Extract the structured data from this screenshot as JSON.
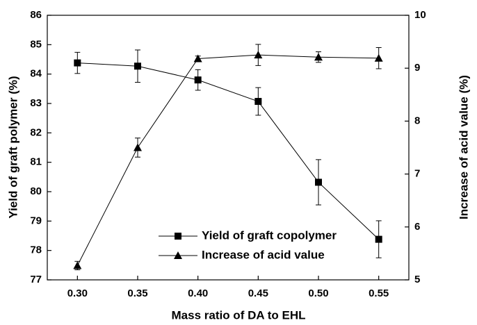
{
  "chart_data": {
    "type": "line",
    "xlabel": "Mass ratio of DA to EHL",
    "ylabel": "Yield of graft polymer (%)",
    "y2label": "Increase of acid value (%)",
    "x": [
      0.3,
      0.35,
      0.4,
      0.45,
      0.5,
      0.55
    ],
    "xlim": [
      0.275,
      0.575
    ],
    "xticks": [
      {
        "value": 0.3,
        "label": "0.30"
      },
      {
        "value": 0.35,
        "label": "0.35"
      },
      {
        "value": 0.4,
        "label": "0.40"
      },
      {
        "value": 0.45,
        "label": "0.45"
      },
      {
        "value": 0.5,
        "label": "0.50"
      },
      {
        "value": 0.55,
        "label": "0.55"
      }
    ],
    "ylim": [
      77,
      86
    ],
    "yticks": [
      77,
      78,
      79,
      80,
      81,
      82,
      83,
      84,
      85,
      86
    ],
    "y2lim": [
      5,
      10
    ],
    "y2ticks": [
      5,
      6,
      7,
      8,
      9,
      10
    ],
    "legend": "lower center",
    "series": [
      {
        "name": "Yield of graft copolymer",
        "color": "#000000",
        "marker": "square",
        "axis": "y",
        "values": [
          84.38,
          84.27,
          83.8,
          83.07,
          80.32,
          78.38
        ],
        "errors": [
          0.36,
          0.55,
          0.35,
          0.47,
          0.77,
          0.63
        ]
      },
      {
        "name": "Increase of acid value",
        "color": "#000000",
        "marker": "triangle",
        "axis": "y2",
        "values": [
          5.27,
          7.5,
          9.18,
          9.25,
          9.21,
          9.19
        ],
        "errors": [
          0.08,
          0.18,
          0.05,
          0.2,
          0.1,
          0.2
        ]
      }
    ]
  }
}
